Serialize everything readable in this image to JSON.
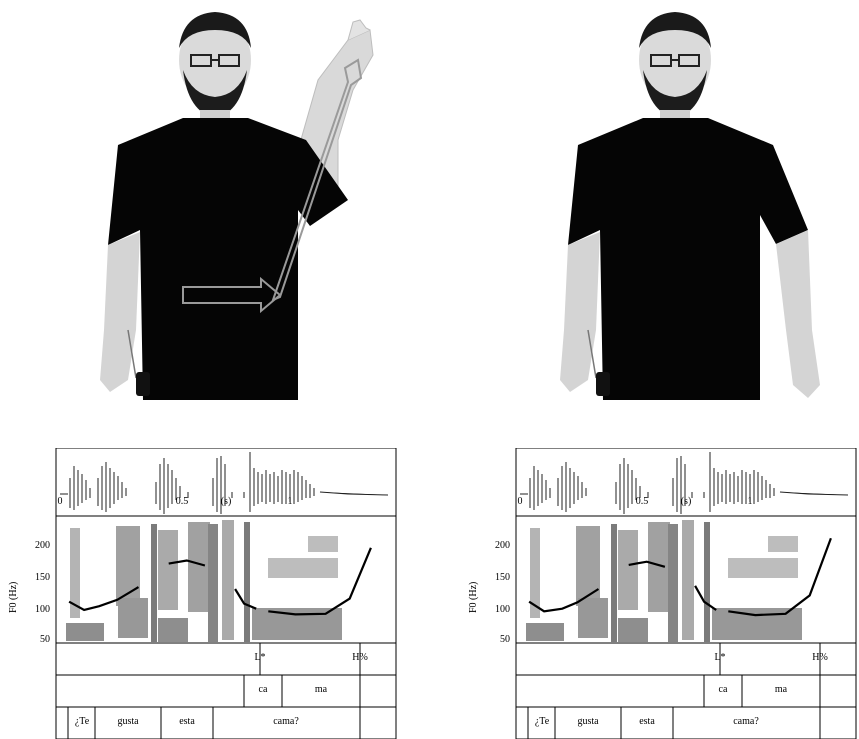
{
  "panels": [
    {
      "id": "left",
      "time_ticks": [
        "0",
        "0.5",
        "(s)",
        "1"
      ],
      "y_axis_label": "F0 (Hz)",
      "y_ticks": [
        "200",
        "150",
        "100",
        "50"
      ],
      "tones": [
        "L*",
        "H%"
      ],
      "syllables": [
        "ca",
        "ma"
      ],
      "words": [
        "¿Te",
        "gusta",
        "esta",
        "cama?"
      ]
    },
    {
      "id": "right",
      "time_ticks": [
        "0",
        "0.5",
        "(s)",
        "1"
      ],
      "y_axis_label": "F0 (Hz)",
      "y_ticks": [
        "200",
        "150",
        "100",
        "50"
      ],
      "tones": [
        "L*",
        "H%"
      ],
      "syllables": [
        "ca",
        "ma"
      ],
      "words": [
        "¿Te",
        "gusta",
        "esta",
        "cama?"
      ]
    }
  ],
  "chart_data": [
    {
      "type": "line",
      "title": "",
      "xlabel": "(s)",
      "ylabel": "F0 (Hz)",
      "ylim": [
        50,
        250
      ],
      "series": [
        {
          "x": [
            0.03,
            0.08,
            0.13,
            0.19,
            0.26
          ],
          "values": [
            115,
            102,
            108,
            118,
            138
          ]
        },
        {
          "x": [
            0.36,
            0.42,
            0.48
          ],
          "values": [
            175,
            180,
            172
          ]
        },
        {
          "x": [
            0.58,
            0.61,
            0.65
          ],
          "values": [
            135,
            112,
            104
          ]
        },
        {
          "x": [
            0.69,
            0.78,
            0.88,
            0.96,
            1.03
          ],
          "values": [
            100,
            95,
            96,
            120,
            200
          ]
        }
      ]
    },
    {
      "type": "line",
      "title": "",
      "xlabel": "(s)",
      "ylabel": "F0 (Hz)",
      "ylim": [
        50,
        250
      ],
      "series": [
        {
          "x": [
            0.03,
            0.08,
            0.14,
            0.19,
            0.26
          ],
          "values": [
            115,
            100,
            104,
            114,
            135
          ]
        },
        {
          "x": [
            0.36,
            0.42,
            0.48
          ],
          "values": [
            173,
            178,
            170
          ]
        },
        {
          "x": [
            0.58,
            0.61,
            0.65
          ],
          "values": [
            140,
            115,
            102
          ]
        },
        {
          "x": [
            0.69,
            0.78,
            0.88,
            0.96,
            1.03
          ],
          "values": [
            100,
            94,
            96,
            125,
            215
          ]
        }
      ]
    }
  ]
}
